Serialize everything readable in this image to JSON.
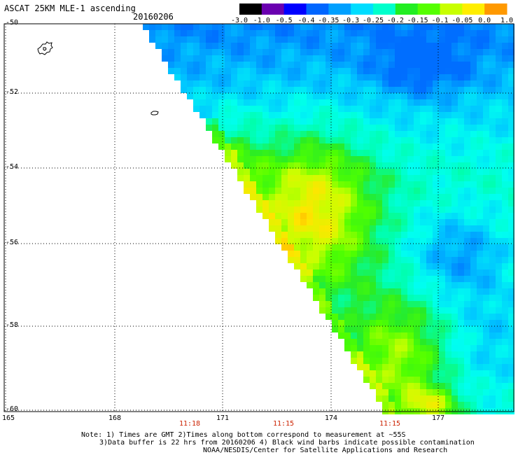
{
  "header": {
    "title": "ASCAT 25KM MLE-1 ascending",
    "date": "20160206"
  },
  "colorbar": {
    "labels": [
      "-3.0",
      "-1.0",
      "-0.5",
      "-0.4",
      "-0.35",
      "-0.3",
      "-0.25",
      "-0.2",
      "-0.15",
      "-0.1",
      "-0.05",
      "0.0",
      "1.0"
    ],
    "colors": [
      "#000000",
      "#6a00b0",
      "#0000ff",
      "#0066ff",
      "#00a0ff",
      "#00ddff",
      "#00ffcc",
      "#22ee22",
      "#55ff00",
      "#c8ff00",
      "#ffee00",
      "#ff9900",
      "#ff2200"
    ]
  },
  "map": {
    "lat_labels": [
      "-50",
      "-52",
      "-54",
      "-56",
      "-58",
      "-60"
    ],
    "lon_labels": [
      "165",
      "168",
      "171",
      "174",
      "177"
    ],
    "time_labels": [
      "11:18",
      "11:15",
      "11:15"
    ],
    "colors": {
      "land_outline": "#000000",
      "grid": "#000000",
      "time_label": "#cc2200"
    }
  },
  "notes": {
    "line1": "Note: 1) Times are GMT 2)Times along bottom correspond to measurement at ~55S",
    "line2": "3)Data buffer is 22 hrs from 20160206 4) Black wind barbs indicate possible contamination",
    "line3": "NOAA/NESDIS/Center for Satellite Applications and Research"
  }
}
